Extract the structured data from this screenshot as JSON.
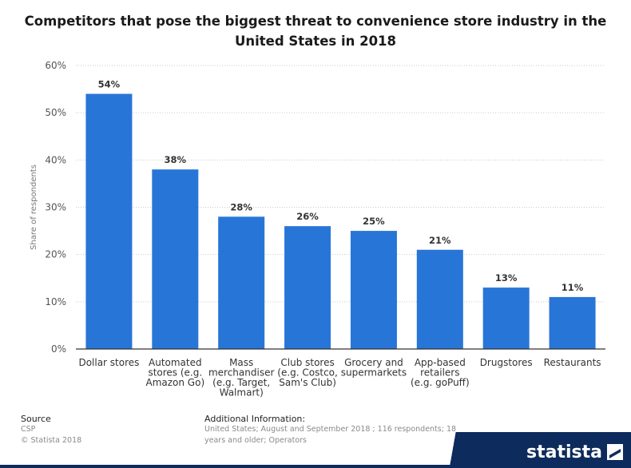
{
  "title": "Competitors that pose the biggest threat to convenience store industry in the United States in 2018",
  "chart_data": {
    "type": "bar",
    "title": "Competitors that pose the biggest threat to convenience store industry in the United States in 2018",
    "categories": [
      [
        "Dollar stores"
      ],
      [
        "Automated",
        "stores (e.g.",
        "Amazon Go)"
      ],
      [
        "Mass",
        "merchandiser",
        "(e.g. Target,",
        "Walmart)"
      ],
      [
        "Club stores",
        "(e.g. Costco,",
        "Sam's Club)"
      ],
      [
        "Grocery and",
        "supermarkets"
      ],
      [
        "App-based",
        "retailers",
        "(e.g. goPuff)"
      ],
      [
        "Drugstores"
      ],
      [
        "Restaurants"
      ]
    ],
    "values": [
      54,
      38,
      28,
      26,
      25,
      21,
      13,
      11
    ],
    "value_labels": [
      "54%",
      "38%",
      "28%",
      "26%",
      "25%",
      "21%",
      "13%",
      "11%"
    ],
    "ylabel": "Share of respondents",
    "xlabel": "",
    "ylim": [
      0,
      60
    ],
    "yticks": [
      0,
      10,
      20,
      30,
      40,
      50,
      60
    ],
    "ytick_labels": [
      "0%",
      "10%",
      "20%",
      "30%",
      "40%",
      "50%",
      "60%"
    ],
    "grid": true,
    "bar_color": "#2875d8"
  },
  "footer": {
    "source_label": "Source",
    "source_lines": [
      "CSP",
      "© Statista 2018"
    ],
    "info_label": "Additional Information:",
    "info_lines": [
      "United States; August and September 2018 ; 116 respondents; 18",
      "years and older; Operators"
    ]
  },
  "brand": {
    "name": "statista",
    "color": "#0d2b5c"
  }
}
